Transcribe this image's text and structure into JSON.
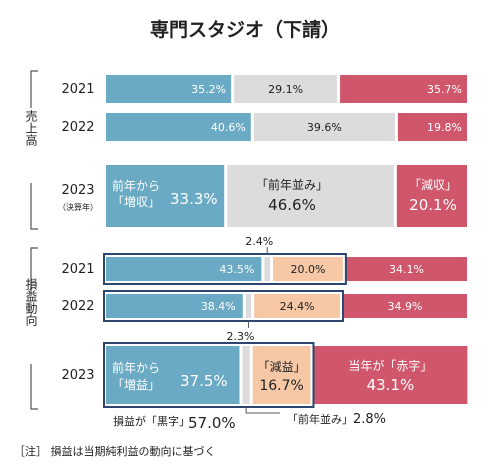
{
  "chart_data": {
    "type": "bar",
    "orientation": "horizontal-stacked-100",
    "title": "専門スタジオ（下請）",
    "colors": {
      "up": "#6aaac4",
      "flat": "#dcdcdc",
      "down": "#d0566b",
      "flat_profit": "#f6c8a6",
      "highlight_border": "#2c4670",
      "bracket": "#555555"
    },
    "groups": [
      {
        "name": "売上高",
        "rows": [
          {
            "year": "2021",
            "year_note": "",
            "values": [
              35.2,
              29.1,
              35.7
            ],
            "labels": [
              "35.2%",
              "29.1%",
              "35.7%"
            ]
          },
          {
            "year": "2022",
            "year_note": "",
            "values": [
              40.6,
              39.6,
              19.8
            ],
            "labels": [
              "40.6%",
              "39.6%",
              "19.8%"
            ]
          },
          {
            "year": "2023",
            "year_note": "（決算年）",
            "values": [
              33.3,
              46.6,
              20.1
            ],
            "labels": [
              "33.3%",
              "46.6%",
              "20.1%"
            ],
            "captions": [
              "前年から\n「増収」",
              "「前年並み」",
              "「減収」"
            ]
          }
        ]
      },
      {
        "name": "損益動向",
        "rows": [
          {
            "year": "2021",
            "year_note": "",
            "values": [
              43.5,
              2.4,
              20.0,
              34.1
            ],
            "labels": [
              "43.5%",
              "2.4%",
              "20.0%",
              "34.1%"
            ]
          },
          {
            "year": "2022",
            "year_note": "",
            "values": [
              38.4,
              2.3,
              24.4,
              34.9
            ],
            "labels": [
              "38.4%",
              "2.3%",
              "24.4%",
              "34.9%"
            ]
          },
          {
            "year": "2023",
            "year_note": "",
            "values": [
              37.5,
              2.8,
              16.7,
              43.1
            ],
            "labels": [
              "37.5%",
              "2.8%",
              "16.7%",
              "43.1%"
            ],
            "captions": [
              "前年から\n「増益」",
              "",
              "「減益」",
              "当年が「赤字」"
            ]
          }
        ]
      }
    ],
    "annotations": {
      "black_prefix": "損益が「黒字」",
      "black_value": "57.0%",
      "flat_prefix": "「前年並み」",
      "flat_value": "2.8%"
    },
    "note": "［注］ 損益は当期純利益の動向に基づく"
  }
}
